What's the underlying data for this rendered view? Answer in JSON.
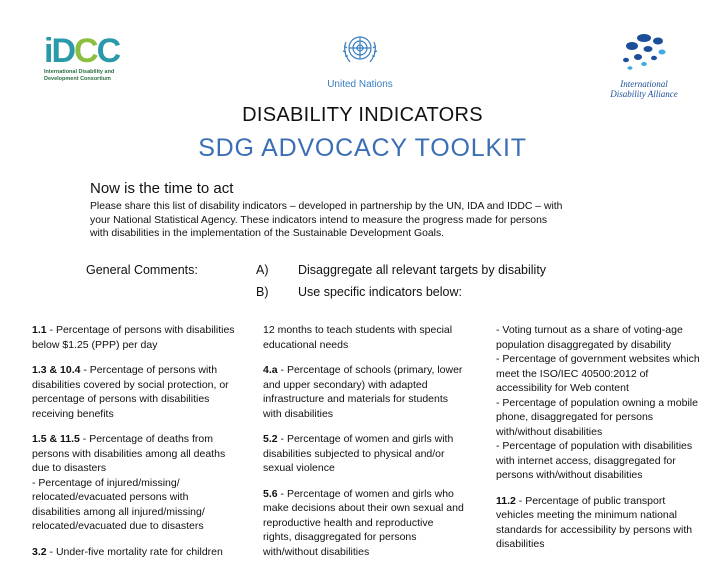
{
  "logos": {
    "idcc": {
      "name_line1": "International Disability and",
      "name_line2": "Development Consortium"
    },
    "un": {
      "name": "United Nations"
    },
    "ida": {
      "name_line1": "International",
      "name_line2": "Disability Alliance"
    },
    "colors": {
      "idcc_teal": "#2a9aa8",
      "idcc_green": "#8cbf3f",
      "un_blue": "#3a7fc1",
      "ida_blue": "#1c4e9a"
    }
  },
  "heading": {
    "title": "DISABILITY INDICATORS",
    "subtitle": "SDG ADVOCACY TOOLKIT",
    "subtitle_color": "#3b6fb5"
  },
  "intro": {
    "heading": "Now is the time to act",
    "line1": "Please share this list of disability indicators – developed in partnership by the UN, IDA and IDDC – with",
    "line2": "your National Statistical Agency. These indicators intend to measure the progress made for persons",
    "line3": "with disabilities in the implementation of the Sustainable Development Goals."
  },
  "comments": {
    "label": "General Comments:",
    "items": [
      {
        "marker": "A)",
        "text": "Disaggregate  all relevant targets by disability"
      },
      {
        "marker": "B)",
        "text": "Use specific  indicators below:"
      }
    ]
  },
  "columns": {
    "col1": [
      {
        "code": "1.1",
        "lines": [
          "- Percentage of persons with disabilities",
          "below $1.25 (PPP) per day"
        ]
      },
      {
        "code": "1.3 & 10.4",
        "lines": [
          "- Percentage of persons with",
          "disabilities covered by social protection, or",
          "percentage of persons with disabilities",
          "receiving benefits"
        ]
      },
      {
        "code": "1.5 & 11.5",
        "lines": [
          "- Percentage of deaths from",
          "persons with disabilities among all deaths",
          "due to disasters",
          "- Percentage of injured/missing/",
          "relocated/evacuated persons with",
          "disabilities among all injured/missing/",
          "relocated/evacuated due to disasters"
        ]
      },
      {
        "code": "3.2",
        "lines": [
          "- Under-five mortality rate for children"
        ]
      }
    ],
    "col2": [
      {
        "code": "",
        "lines": [
          "12 months to teach students with special",
          "educational needs"
        ]
      },
      {
        "code": "4.a",
        "lines": [
          "- Percentage of schools (primary, lower",
          "and upper secondary) with adapted",
          "infrastructure and materials for students",
          "with disabilities"
        ]
      },
      {
        "code": "5.2",
        "lines": [
          "- Percentage of women and girls with",
          "disabilities subjected to physical and/or",
          "sexual violence"
        ]
      },
      {
        "code": "5.6",
        "lines": [
          "- Percentage of women and girls who",
          "make decisions about their own sexual and",
          "reproductive health and reproductive",
          "rights, disaggregated for persons",
          "with/without disabilities"
        ]
      }
    ],
    "col3": [
      {
        "code": "",
        "lines": [
          "- Voting turnout as a share of voting-age",
          "population disaggregated by disability",
          "- Percentage of government websites which",
          "meet the ISO/IEC 40500:2012 of",
          "accessibility for Web content",
          "- Percentage of population owning a mobile",
          "phone, disaggregated for persons",
          "with/without disabilities",
          "- Percentage of population with disabilities",
          "with internet access, disaggregated for",
          "persons with/without disabilities"
        ]
      },
      {
        "code": "11.2",
        "lines": [
          "- Percentage of public transport",
          "vehicles meeting the minimum national",
          "standards for accessibility by persons with",
          "disabilities"
        ]
      }
    ]
  }
}
